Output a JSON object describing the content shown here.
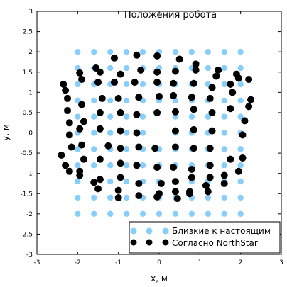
{
  "chart_data": {
    "type": "scatter",
    "title": "Положения робота",
    "xlabel": "x, м",
    "ylabel": "y, м",
    "xlim": [
      -3,
      3
    ],
    "ylim": [
      -3,
      3
    ],
    "xticks": [
      -3,
      -2,
      -1,
      0,
      1,
      2,
      3
    ],
    "yticks": [
      -3,
      -2.5,
      -2,
      -1.5,
      -1,
      -0.5,
      0,
      0.5,
      1,
      1.5,
      2,
      2.5,
      3
    ],
    "grid": false,
    "legend_position": "bottom-right",
    "series": [
      {
        "name": "Близкие к настоящим",
        "color": "#87cefa",
        "points": [
          [
            -2,
            2
          ],
          [
            -1.6,
            2
          ],
          [
            -1.2,
            2
          ],
          [
            -0.8,
            2
          ],
          [
            -0.4,
            2
          ],
          [
            0,
            2
          ],
          [
            0.4,
            2
          ],
          [
            0.8,
            2
          ],
          [
            1.2,
            2
          ],
          [
            1.6,
            2
          ],
          [
            2,
            2
          ],
          [
            -2,
            1.6
          ],
          [
            -1.6,
            1.6
          ],
          [
            -1.2,
            1.6
          ],
          [
            -0.8,
            1.6
          ],
          [
            -0.4,
            1.6
          ],
          [
            0,
            1.6
          ],
          [
            0.4,
            1.6
          ],
          [
            0.8,
            1.6
          ],
          [
            1.2,
            1.6
          ],
          [
            1.6,
            1.6
          ],
          [
            2,
            1.6
          ],
          [
            -2,
            1.2
          ],
          [
            -1.6,
            1.2
          ],
          [
            -1.2,
            1.2
          ],
          [
            -0.8,
            1.2
          ],
          [
            -0.4,
            1.2
          ],
          [
            0,
            1.2
          ],
          [
            0.4,
            1.2
          ],
          [
            0.8,
            1.2
          ],
          [
            1.2,
            1.2
          ],
          [
            1.6,
            1.2
          ],
          [
            2,
            1.2
          ],
          [
            -2,
            0.8
          ],
          [
            -1.6,
            0.8
          ],
          [
            -1.2,
            0.8
          ],
          [
            -0.8,
            0.8
          ],
          [
            -0.4,
            0.8
          ],
          [
            0,
            0.8
          ],
          [
            0.4,
            0.8
          ],
          [
            0.8,
            0.8
          ],
          [
            1.2,
            0.8
          ],
          [
            1.6,
            0.8
          ],
          [
            2,
            0.8
          ],
          [
            -2,
            0.4
          ],
          [
            -1.6,
            0.4
          ],
          [
            -1.2,
            0.4
          ],
          [
            -0.8,
            0.4
          ],
          [
            -0.4,
            0.4
          ],
          [
            0.4,
            0.4
          ],
          [
            0.8,
            0.4
          ],
          [
            1.2,
            0.4
          ],
          [
            1.6,
            0.4
          ],
          [
            2,
            0.4
          ],
          [
            -2,
            0
          ],
          [
            -1.6,
            0
          ],
          [
            -1.2,
            0
          ],
          [
            -0.8,
            0
          ],
          [
            -0.4,
            0
          ],
          [
            0.4,
            0
          ],
          [
            0.8,
            0
          ],
          [
            1.2,
            0
          ],
          [
            1.6,
            0
          ],
          [
            2,
            0
          ],
          [
            -2,
            -0.4
          ],
          [
            -1.6,
            -0.4
          ],
          [
            -1.2,
            -0.4
          ],
          [
            -0.8,
            -0.4
          ],
          [
            -0.4,
            -0.4
          ],
          [
            0,
            -0.4
          ],
          [
            0.4,
            -0.4
          ],
          [
            0.8,
            -0.4
          ],
          [
            1.2,
            -0.4
          ],
          [
            1.6,
            -0.4
          ],
          [
            2,
            -0.4
          ],
          [
            -2,
            -0.8
          ],
          [
            -1.6,
            -0.8
          ],
          [
            -1.2,
            -0.8
          ],
          [
            -0.8,
            -0.8
          ],
          [
            -0.4,
            -0.8
          ],
          [
            0,
            -0.8
          ],
          [
            0.4,
            -0.8
          ],
          [
            0.8,
            -0.8
          ],
          [
            1.2,
            -0.8
          ],
          [
            1.6,
            -0.8
          ],
          [
            2,
            -0.8
          ],
          [
            -2,
            -1.2
          ],
          [
            -1.6,
            -1.2
          ],
          [
            -1.2,
            -1.2
          ],
          [
            -0.8,
            -1.2
          ],
          [
            -0.4,
            -1.2
          ],
          [
            0,
            -1.2
          ],
          [
            0.4,
            -1.2
          ],
          [
            0.8,
            -1.2
          ],
          [
            1.2,
            -1.2
          ],
          [
            1.6,
            -1.2
          ],
          [
            2,
            -1.2
          ],
          [
            -2,
            -1.6
          ],
          [
            -1.6,
            -1.6
          ],
          [
            -1.2,
            -1.6
          ],
          [
            -0.8,
            -1.6
          ],
          [
            -0.4,
            -1.6
          ],
          [
            0,
            -1.6
          ],
          [
            0.4,
            -1.6
          ],
          [
            0.8,
            -1.6
          ],
          [
            1.2,
            -1.6
          ],
          [
            1.6,
            -1.6
          ],
          [
            2,
            -1.6
          ],
          [
            -2,
            -2
          ],
          [
            -1.6,
            -2
          ],
          [
            -1.2,
            -2
          ],
          [
            -0.8,
            -2
          ],
          [
            -0.4,
            -2
          ],
          [
            0,
            -2
          ],
          [
            0.4,
            -2
          ],
          [
            0.8,
            -2
          ],
          [
            1.2,
            -2
          ],
          [
            1.6,
            -2
          ],
          [
            2,
            -2
          ]
        ]
      },
      {
        "name": "Согласно NorthStar",
        "color": "#000000",
        "points": [
          [
            -1.1,
            1.85
          ],
          [
            -0.55,
            1.92
          ],
          [
            -0.05,
            1.9
          ],
          [
            0.5,
            1.82
          ],
          [
            0.9,
            1.7
          ],
          [
            1.45,
            1.55
          ],
          [
            1.9,
            1.45
          ],
          [
            2.2,
            1.32
          ],
          [
            -1.95,
            1.48
          ],
          [
            -1.55,
            1.6
          ],
          [
            -1.45,
            1.5
          ],
          [
            -0.95,
            1.45
          ],
          [
            -0.45,
            1.55
          ],
          [
            -0.05,
            1.5
          ],
          [
            0.4,
            1.52
          ],
          [
            0.9,
            1.55
          ],
          [
            1.4,
            1.4
          ],
          [
            -2.35,
            1.2
          ],
          [
            -2.3,
            1.05
          ],
          [
            -1.9,
            1.32
          ],
          [
            -1.5,
            1.25
          ],
          [
            -1.1,
            1.25
          ],
          [
            -0.6,
            1.25
          ],
          [
            -0.05,
            1.25
          ],
          [
            0.35,
            1.22
          ],
          [
            0.85,
            1.22
          ],
          [
            1.3,
            1.12
          ],
          [
            1.75,
            1.2
          ],
          [
            1.95,
            1.35
          ],
          [
            -2.25,
            0.85
          ],
          [
            -1.9,
            0.7
          ],
          [
            -1.4,
            0.85
          ],
          [
            -1.0,
            0.85
          ],
          [
            -0.5,
            0.88
          ],
          [
            0,
            0.9
          ],
          [
            0.35,
            0.92
          ],
          [
            0.8,
            0.88
          ],
          [
            1.25,
            0.85
          ],
          [
            1.8,
            1.0
          ],
          [
            2.25,
            0.82
          ],
          [
            -2.25,
            0.55
          ],
          [
            -1.45,
            0.5
          ],
          [
            -0.95,
            0.5
          ],
          [
            -0.55,
            0.45
          ],
          [
            -0.05,
            0.5
          ],
          [
            0.4,
            0.52
          ],
          [
            0.85,
            0.58
          ],
          [
            1.3,
            0.5
          ],
          [
            1.75,
            0.6
          ],
          [
            2.2,
            0.65
          ],
          [
            -2.2,
            0.25
          ],
          [
            -1.95,
            0.1
          ],
          [
            -1.85,
            0.28
          ],
          [
            -1.45,
            0.1
          ],
          [
            -0.95,
            0.05
          ],
          [
            -0.55,
            0.0
          ],
          [
            0.4,
            0.05
          ],
          [
            0.85,
            0.08
          ],
          [
            1.3,
            0.05
          ],
          [
            2.1,
            0.3
          ],
          [
            -2.2,
            -0.05
          ],
          [
            -1.9,
            -0.3
          ],
          [
            -2.15,
            -0.35
          ],
          [
            -1.25,
            -0.32
          ],
          [
            -0.95,
            -0.38
          ],
          [
            -0.5,
            -0.35
          ],
          [
            -0.1,
            -0.38
          ],
          [
            0.4,
            -0.35
          ],
          [
            0.85,
            -0.38
          ],
          [
            1.25,
            -0.38
          ],
          [
            2.05,
            -0.05
          ],
          [
            -2.4,
            -0.55
          ],
          [
            -2.3,
            -0.8
          ],
          [
            -1.85,
            -0.65
          ],
          [
            -1.45,
            -0.65
          ],
          [
            -0.95,
            -0.75
          ],
          [
            -0.55,
            -0.8
          ],
          [
            -0.05,
            -0.85
          ],
          [
            0.35,
            -0.85
          ],
          [
            0.8,
            -0.9
          ],
          [
            1.25,
            -0.8
          ],
          [
            1.75,
            -0.65
          ],
          [
            2.05,
            -0.62
          ],
          [
            -2.2,
            -0.95
          ],
          [
            -1.95,
            -1.05
          ],
          [
            -1.95,
            -0.95
          ],
          [
            -1.45,
            -1.15
          ],
          [
            -0.95,
            -1.1
          ],
          [
            -0.5,
            -1.25
          ],
          [
            0.05,
            -1.25
          ],
          [
            0.4,
            -1.2
          ],
          [
            0.8,
            -1.1
          ],
          [
            1.25,
            -1.1
          ],
          [
            1.6,
            -1.05
          ],
          [
            1.95,
            -0.95
          ],
          [
            -1.6,
            -1.22
          ],
          [
            -1.5,
            -1.38
          ],
          [
            -1.0,
            -1.42
          ],
          [
            -0.5,
            -1.55
          ],
          [
            0,
            -1.5
          ],
          [
            0.4,
            -1.45
          ],
          [
            0.75,
            -1.45
          ],
          [
            1.15,
            -1.3
          ],
          [
            1.2,
            -1.45
          ],
          [
            1.6,
            -1.25
          ],
          [
            -1.0,
            -1.6
          ],
          [
            -0.05,
            -1.58
          ],
          [
            0.45,
            -1.62
          ],
          [
            0.75,
            -1.5
          ]
        ]
      }
    ]
  }
}
